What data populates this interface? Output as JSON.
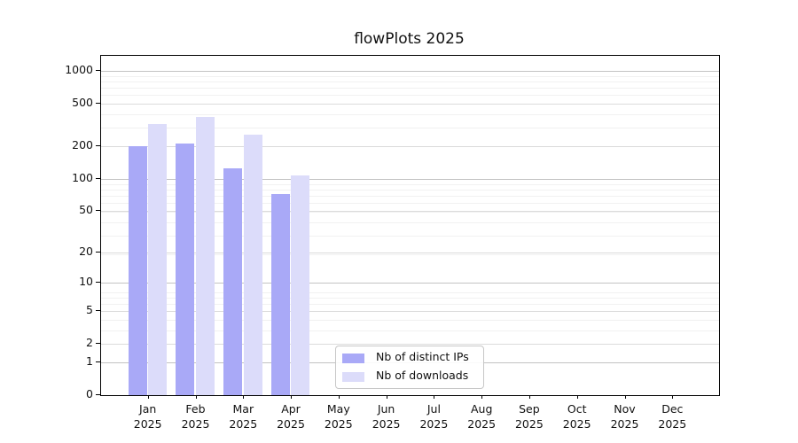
{
  "title": "flowPlots 2025",
  "colors": {
    "distinct_ips_bar": "#a9a9f7",
    "downloads_bar": "#dcdcfa",
    "grid_strong": "#c3c3c3",
    "grid_mid": "#dbdbdb",
    "grid_minor": "#f1f1f1",
    "spine": "#000000",
    "text": "#111111",
    "legend_border": "#c7c7c7"
  },
  "chart_data": {
    "type": "bar",
    "title": "flowPlots 2025",
    "categories": [
      "Jan",
      "Feb",
      "Mar",
      "Apr",
      "May",
      "Jun",
      "Jul",
      "Aug",
      "Sep",
      "Oct",
      "Nov",
      "Dec"
    ],
    "x_tick_second_line": "2025",
    "series": [
      {
        "name": "Nb of distinct IPs",
        "color": "#a9a9f7",
        "values": [
          200,
          210,
          125,
          72,
          null,
          null,
          null,
          null,
          null,
          null,
          null,
          null
        ]
      },
      {
        "name": "Nb of downloads",
        "color": "#dcdcfa",
        "values": [
          320,
          375,
          255,
          106,
          null,
          null,
          null,
          null,
          null,
          null,
          null,
          null
        ]
      }
    ],
    "yscale": "log1p",
    "yticks": [
      0,
      1,
      2,
      5,
      10,
      20,
      50,
      100,
      200,
      500,
      1000
    ],
    "yticks_strong_grid": [
      1,
      10,
      100,
      1000
    ],
    "ylim": [
      0,
      1500
    ],
    "grid": true,
    "legend_position": "lower center"
  }
}
